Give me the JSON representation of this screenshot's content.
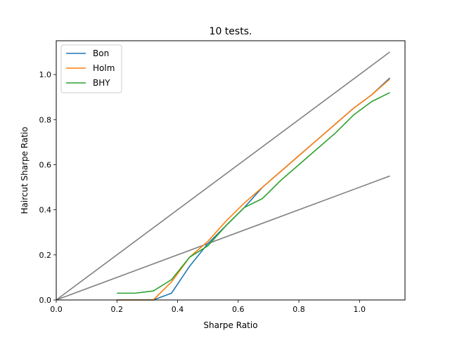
{
  "chart_data": {
    "type": "line",
    "title": "10 tests.",
    "xlabel": "Sharpe Ratio",
    "ylabel": "Haircut Sharpe Ratio",
    "xlim": [
      0,
      1.15
    ],
    "ylim": [
      0,
      1.15
    ],
    "xticks": [
      0.0,
      0.2,
      0.4,
      0.6,
      0.8,
      1.0
    ],
    "yticks": [
      0.0,
      0.2,
      0.4,
      0.6,
      0.8,
      1.0
    ],
    "xtick_labels": [
      "0.0",
      "0.2",
      "0.4",
      "0.6",
      "0.8",
      "1.0"
    ],
    "ytick_labels": [
      "0.0",
      "0.2",
      "0.4",
      "0.6",
      "0.8",
      "1.0"
    ],
    "grid": false,
    "legend_position": "top-left",
    "series": [
      {
        "name": "Bon",
        "color": "#1f77b4",
        "x": [
          0.2,
          0.26,
          0.32,
          0.38,
          0.44,
          0.5,
          0.56,
          0.62,
          0.68,
          0.74,
          0.8,
          0.86,
          0.92,
          0.98,
          1.04,
          1.1
        ],
        "y": [
          0.0,
          0.0,
          0.0,
          0.03,
          0.15,
          0.25,
          0.33,
          0.41,
          0.5,
          0.57,
          0.64,
          0.71,
          0.78,
          0.85,
          0.91,
          0.985
        ]
      },
      {
        "name": "Holm",
        "color": "#ff7f0e",
        "x": [
          0.2,
          0.26,
          0.32,
          0.38,
          0.44,
          0.5,
          0.56,
          0.62,
          0.68,
          0.74,
          0.8,
          0.86,
          0.92,
          0.98,
          1.04,
          1.1
        ],
        "y": [
          0.0,
          0.0,
          0.0,
          0.08,
          0.19,
          0.26,
          0.35,
          0.43,
          0.5,
          0.57,
          0.64,
          0.71,
          0.78,
          0.85,
          0.91,
          0.98
        ]
      },
      {
        "name": "BHY",
        "color": "#2ca02c",
        "x": [
          0.2,
          0.26,
          0.32,
          0.38,
          0.44,
          0.5,
          0.56,
          0.62,
          0.68,
          0.74,
          0.8,
          0.86,
          0.92,
          0.98,
          1.04,
          1.1
        ],
        "y": [
          0.03,
          0.03,
          0.04,
          0.09,
          0.19,
          0.24,
          0.33,
          0.41,
          0.45,
          0.53,
          0.6,
          0.67,
          0.74,
          0.82,
          0.88,
          0.92
        ]
      },
      {
        "color": "#808080",
        "x": [
          0.0,
          1.1
        ],
        "y": [
          0.0,
          1.1
        ]
      },
      {
        "color": "#808080",
        "x": [
          0.0,
          1.1
        ],
        "y": [
          0.0,
          0.55
        ]
      }
    ]
  }
}
